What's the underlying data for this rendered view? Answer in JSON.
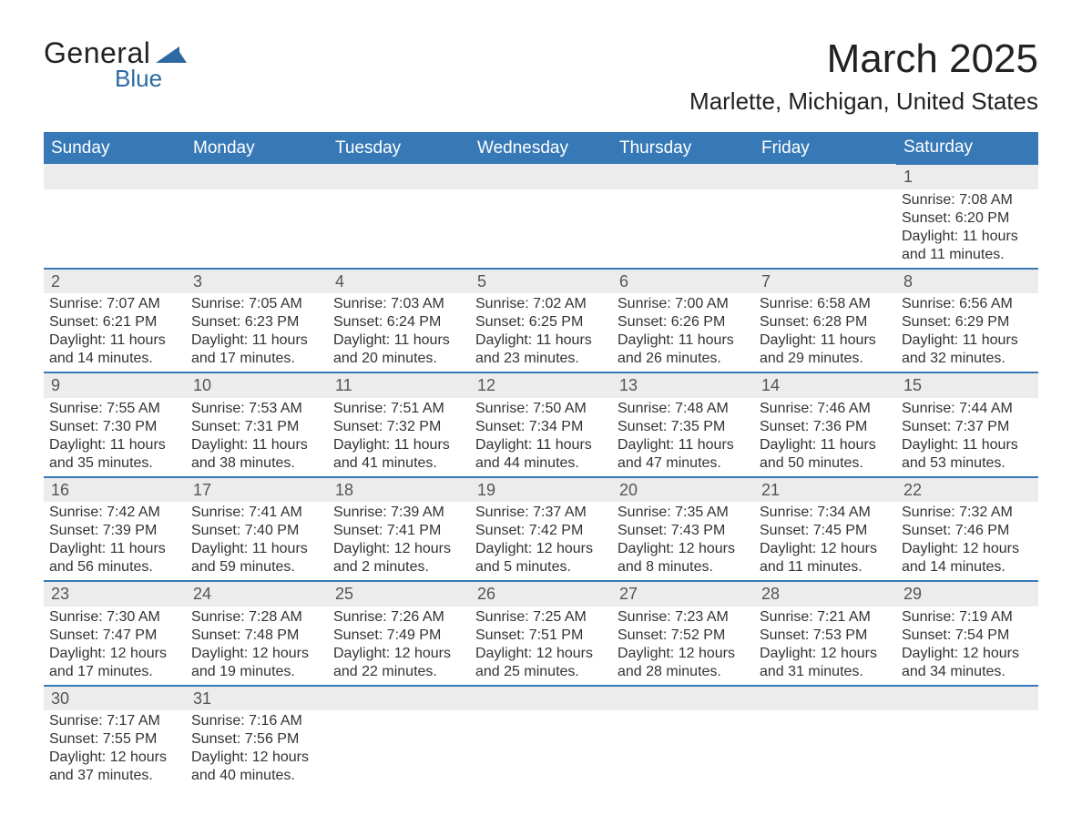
{
  "logo": {
    "general": "General",
    "blue": "Blue"
  },
  "header": {
    "title": "March 2025",
    "location": "Marlette, Michigan, United States"
  },
  "colors": {
    "header_bg": "#3679b6",
    "header_text": "#ffffff",
    "daynum_bg": "#ececec",
    "row_border": "#3679b6",
    "body_text": "#333333",
    "logo_blue": "#2d6aa3"
  },
  "weekdays": [
    "Sunday",
    "Monday",
    "Tuesday",
    "Wednesday",
    "Thursday",
    "Friday",
    "Saturday"
  ],
  "weeks": [
    [
      null,
      null,
      null,
      null,
      null,
      null,
      {
        "n": "1",
        "sr": "Sunrise: 7:08 AM",
        "ss": "Sunset: 6:20 PM",
        "d1": "Daylight: 11 hours",
        "d2": "and 11 minutes."
      }
    ],
    [
      {
        "n": "2",
        "sr": "Sunrise: 7:07 AM",
        "ss": "Sunset: 6:21 PM",
        "d1": "Daylight: 11 hours",
        "d2": "and 14 minutes."
      },
      {
        "n": "3",
        "sr": "Sunrise: 7:05 AM",
        "ss": "Sunset: 6:23 PM",
        "d1": "Daylight: 11 hours",
        "d2": "and 17 minutes."
      },
      {
        "n": "4",
        "sr": "Sunrise: 7:03 AM",
        "ss": "Sunset: 6:24 PM",
        "d1": "Daylight: 11 hours",
        "d2": "and 20 minutes."
      },
      {
        "n": "5",
        "sr": "Sunrise: 7:02 AM",
        "ss": "Sunset: 6:25 PM",
        "d1": "Daylight: 11 hours",
        "d2": "and 23 minutes."
      },
      {
        "n": "6",
        "sr": "Sunrise: 7:00 AM",
        "ss": "Sunset: 6:26 PM",
        "d1": "Daylight: 11 hours",
        "d2": "and 26 minutes."
      },
      {
        "n": "7",
        "sr": "Sunrise: 6:58 AM",
        "ss": "Sunset: 6:28 PM",
        "d1": "Daylight: 11 hours",
        "d2": "and 29 minutes."
      },
      {
        "n": "8",
        "sr": "Sunrise: 6:56 AM",
        "ss": "Sunset: 6:29 PM",
        "d1": "Daylight: 11 hours",
        "d2": "and 32 minutes."
      }
    ],
    [
      {
        "n": "9",
        "sr": "Sunrise: 7:55 AM",
        "ss": "Sunset: 7:30 PM",
        "d1": "Daylight: 11 hours",
        "d2": "and 35 minutes."
      },
      {
        "n": "10",
        "sr": "Sunrise: 7:53 AM",
        "ss": "Sunset: 7:31 PM",
        "d1": "Daylight: 11 hours",
        "d2": "and 38 minutes."
      },
      {
        "n": "11",
        "sr": "Sunrise: 7:51 AM",
        "ss": "Sunset: 7:32 PM",
        "d1": "Daylight: 11 hours",
        "d2": "and 41 minutes."
      },
      {
        "n": "12",
        "sr": "Sunrise: 7:50 AM",
        "ss": "Sunset: 7:34 PM",
        "d1": "Daylight: 11 hours",
        "d2": "and 44 minutes."
      },
      {
        "n": "13",
        "sr": "Sunrise: 7:48 AM",
        "ss": "Sunset: 7:35 PM",
        "d1": "Daylight: 11 hours",
        "d2": "and 47 minutes."
      },
      {
        "n": "14",
        "sr": "Sunrise: 7:46 AM",
        "ss": "Sunset: 7:36 PM",
        "d1": "Daylight: 11 hours",
        "d2": "and 50 minutes."
      },
      {
        "n": "15",
        "sr": "Sunrise: 7:44 AM",
        "ss": "Sunset: 7:37 PM",
        "d1": "Daylight: 11 hours",
        "d2": "and 53 minutes."
      }
    ],
    [
      {
        "n": "16",
        "sr": "Sunrise: 7:42 AM",
        "ss": "Sunset: 7:39 PM",
        "d1": "Daylight: 11 hours",
        "d2": "and 56 minutes."
      },
      {
        "n": "17",
        "sr": "Sunrise: 7:41 AM",
        "ss": "Sunset: 7:40 PM",
        "d1": "Daylight: 11 hours",
        "d2": "and 59 minutes."
      },
      {
        "n": "18",
        "sr": "Sunrise: 7:39 AM",
        "ss": "Sunset: 7:41 PM",
        "d1": "Daylight: 12 hours",
        "d2": "and 2 minutes."
      },
      {
        "n": "19",
        "sr": "Sunrise: 7:37 AM",
        "ss": "Sunset: 7:42 PM",
        "d1": "Daylight: 12 hours",
        "d2": "and 5 minutes."
      },
      {
        "n": "20",
        "sr": "Sunrise: 7:35 AM",
        "ss": "Sunset: 7:43 PM",
        "d1": "Daylight: 12 hours",
        "d2": "and 8 minutes."
      },
      {
        "n": "21",
        "sr": "Sunrise: 7:34 AM",
        "ss": "Sunset: 7:45 PM",
        "d1": "Daylight: 12 hours",
        "d2": "and 11 minutes."
      },
      {
        "n": "22",
        "sr": "Sunrise: 7:32 AM",
        "ss": "Sunset: 7:46 PM",
        "d1": "Daylight: 12 hours",
        "d2": "and 14 minutes."
      }
    ],
    [
      {
        "n": "23",
        "sr": "Sunrise: 7:30 AM",
        "ss": "Sunset: 7:47 PM",
        "d1": "Daylight: 12 hours",
        "d2": "and 17 minutes."
      },
      {
        "n": "24",
        "sr": "Sunrise: 7:28 AM",
        "ss": "Sunset: 7:48 PM",
        "d1": "Daylight: 12 hours",
        "d2": "and 19 minutes."
      },
      {
        "n": "25",
        "sr": "Sunrise: 7:26 AM",
        "ss": "Sunset: 7:49 PM",
        "d1": "Daylight: 12 hours",
        "d2": "and 22 minutes."
      },
      {
        "n": "26",
        "sr": "Sunrise: 7:25 AM",
        "ss": "Sunset: 7:51 PM",
        "d1": "Daylight: 12 hours",
        "d2": "and 25 minutes."
      },
      {
        "n": "27",
        "sr": "Sunrise: 7:23 AM",
        "ss": "Sunset: 7:52 PM",
        "d1": "Daylight: 12 hours",
        "d2": "and 28 minutes."
      },
      {
        "n": "28",
        "sr": "Sunrise: 7:21 AM",
        "ss": "Sunset: 7:53 PM",
        "d1": "Daylight: 12 hours",
        "d2": "and 31 minutes."
      },
      {
        "n": "29",
        "sr": "Sunrise: 7:19 AM",
        "ss": "Sunset: 7:54 PM",
        "d1": "Daylight: 12 hours",
        "d2": "and 34 minutes."
      }
    ],
    [
      {
        "n": "30",
        "sr": "Sunrise: 7:17 AM",
        "ss": "Sunset: 7:55 PM",
        "d1": "Daylight: 12 hours",
        "d2": "and 37 minutes."
      },
      {
        "n": "31",
        "sr": "Sunrise: 7:16 AM",
        "ss": "Sunset: 7:56 PM",
        "d1": "Daylight: 12 hours",
        "d2": "and 40 minutes."
      },
      null,
      null,
      null,
      null,
      null
    ]
  ]
}
